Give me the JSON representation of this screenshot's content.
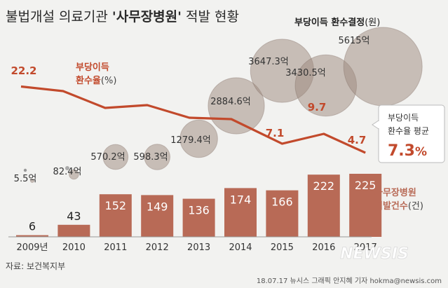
{
  "title_plain": "불법개설 의료기관 ",
  "title_bold": "'사무장병원'",
  "title_tail": " 적발 현황",
  "bubble_legend": {
    "bold": "부당이득 환수결정",
    "unit": "(원)"
  },
  "rate_legend": {
    "line1": "부당이득",
    "line2": "환수율",
    "unit": "(%)"
  },
  "avg_box": {
    "line1": "부당이득",
    "line2": "환수율 평균",
    "value": "7.3",
    "unit": "%"
  },
  "bar_legend": {
    "line1": "사무장병원",
    "line2": "적발건수",
    "unit": "(건)"
  },
  "source": "자료: 보건복지부",
  "credit": "18.07.17 뉴시스 그래픽 안지혜 기자 hokma@newsis.com",
  "watermark": "NEWSIS",
  "colors": {
    "bar": "#b86a56",
    "line": "#c24a2c",
    "bubble": "#9c877c",
    "text": "#333333",
    "background": "#f2f2f0"
  },
  "chart_data": {
    "type": "bar",
    "categories": [
      "2009년",
      "2010",
      "2011",
      "2012",
      "2013",
      "2014",
      "2015",
      "2016",
      "2017"
    ],
    "bar_values": [
      6,
      43,
      152,
      149,
      136,
      174,
      166,
      222,
      225
    ],
    "recovery_amounts": [
      5.5,
      82.4,
      570.2,
      598.3,
      1279.4,
      2884.6,
      3647.3,
      3430.5,
      5615
    ],
    "recovery_labels": [
      "5.5억",
      "82.4억",
      "570.2억",
      "598.3억",
      "1279.4억",
      "2884.6억",
      "3647.3억",
      "3430.5억",
      "5615억"
    ],
    "rate_values": [
      22.2,
      null,
      null,
      null,
      null,
      null,
      7.1,
      9.7,
      4.7
    ],
    "rate_labels": [
      "22.2",
      "",
      "",
      "",
      "",
      "",
      "7.1",
      "9.7",
      "4.7"
    ]
  }
}
